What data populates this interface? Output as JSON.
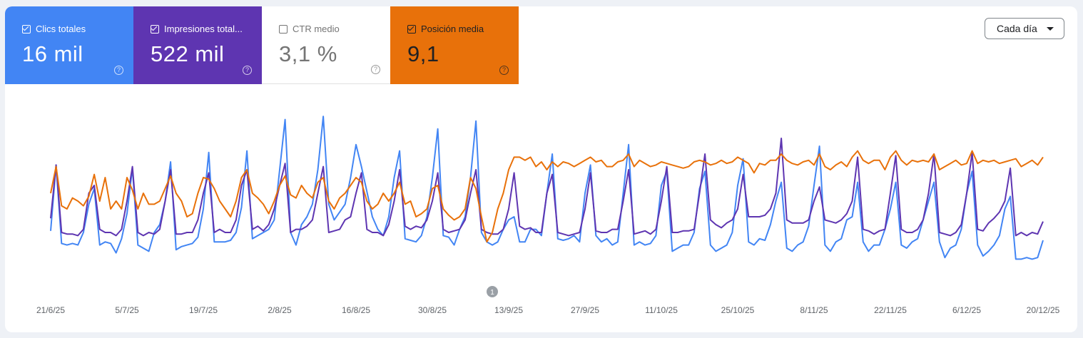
{
  "metrics": [
    {
      "label": "Clics totales",
      "value": "16 mil",
      "checked": true,
      "color": "#4285f4"
    },
    {
      "label": "Impresiones total...",
      "value": "522 mil",
      "checked": true,
      "color": "#5e35b1"
    },
    {
      "label": "CTR medio",
      "value": "3,1 %",
      "checked": false,
      "color": "#ffffff"
    },
    {
      "label": "Posición media",
      "value": "9,1",
      "checked": true,
      "color": "#e8710a"
    }
  ],
  "help_icon": "?",
  "granularity": {
    "selected": "Cada día"
  },
  "annotation": {
    "label": "1"
  },
  "chart_data": {
    "type": "line",
    "x_start": "21/6/25",
    "x_end": "20/12/25",
    "x_tick_labels": [
      "21/6/25",
      "5/7/25",
      "19/7/25",
      "2/8/25",
      "16/8/25",
      "30/8/25",
      "13/9/25",
      "27/9/25",
      "11/10/25",
      "25/10/25",
      "8/11/25",
      "22/11/25",
      "6/12/25",
      "20/12/25"
    ],
    "y_axis": "hidden, relative scale 0-100 per series",
    "grid": false,
    "series": [
      {
        "key": "clicks",
        "color": "#4285f4",
        "values": [
          21,
          63,
          13,
          12,
          13,
          12,
          20,
          38,
          48,
          12,
          14,
          13,
          7,
          16,
          32,
          61,
          12,
          10,
          8,
          20,
          25,
          40,
          65,
          9,
          11,
          12,
          13,
          17,
          35,
          71,
          14,
          14,
          14,
          15,
          20,
          36,
          72,
          16,
          18,
          20,
          22,
          28,
          60,
          92,
          20,
          12,
          25,
          30,
          38,
          60,
          94,
          38,
          28,
          33,
          38,
          55,
          76,
          62,
          46,
          30,
          22,
          18,
          30,
          55,
          72,
          16,
          15,
          14,
          18,
          30,
          55,
          86,
          18,
          17,
          12,
          22,
          30,
          55,
          91,
          20,
          14,
          12,
          14,
          22,
          28,
          30,
          14,
          14,
          22,
          22,
          18,
          45,
          70,
          16,
          15,
          16,
          18,
          14,
          45,
          63,
          18,
          14,
          16,
          12,
          14,
          45,
          76,
          12,
          14,
          12,
          13,
          18,
          50,
          59,
          8,
          10,
          12,
          12,
          20,
          48,
          59,
          12,
          8,
          10,
          12,
          20,
          50,
          67,
          14,
          12,
          16,
          15,
          25,
          40,
          52,
          10,
          8,
          12,
          14,
          24,
          50,
          75,
          12,
          8,
          14,
          16,
          28,
          30,
          52,
          14,
          8,
          12,
          12,
          22,
          35,
          52,
          12,
          10,
          14,
          16,
          28,
          40,
          52,
          14,
          4,
          10,
          12,
          22,
          45,
          59,
          12,
          5,
          8,
          12,
          18,
          35,
          43,
          3,
          3,
          4,
          3,
          4,
          15
        ]
      },
      {
        "key": "impressions",
        "color": "#5e35b1",
        "values": [
          29,
          63,
          20,
          19,
          19,
          18,
          22,
          45,
          50,
          22,
          20,
          20,
          18,
          22,
          40,
          62,
          20,
          18,
          20,
          19,
          22,
          40,
          60,
          19,
          19,
          20,
          20,
          28,
          45,
          58,
          20,
          22,
          20,
          20,
          28,
          50,
          60,
          22,
          24,
          21,
          25,
          35,
          50,
          64,
          20,
          22,
          22,
          24,
          28,
          45,
          62,
          20,
          21,
          22,
          28,
          30,
          45,
          58,
          22,
          20,
          20,
          18,
          25,
          40,
          60,
          24,
          22,
          24,
          23,
          28,
          40,
          58,
          22,
          20,
          21,
          22,
          28,
          45,
          60,
          22,
          20,
          19,
          19,
          22,
          35,
          58,
          24,
          22,
          23,
          20,
          20,
          45,
          57,
          20,
          19,
          18,
          19,
          20,
          35,
          58,
          21,
          20,
          20,
          22,
          22,
          40,
          60,
          19,
          20,
          21,
          19,
          22,
          40,
          62,
          20,
          20,
          21,
          21,
          22,
          45,
          70,
          28,
          25,
          23,
          26,
          28,
          35,
          57,
          30,
          30,
          30,
          31,
          35,
          45,
          80,
          28,
          26,
          26,
          26,
          28,
          40,
          49,
          28,
          27,
          26,
          28,
          32,
          40,
          68,
          22,
          21,
          19,
          21,
          22,
          45,
          69,
          22,
          20,
          20,
          22,
          28,
          45,
          70,
          20,
          19,
          18,
          20,
          25,
          45,
          71,
          22,
          21,
          26,
          29,
          33,
          40,
          61,
          18,
          20,
          18,
          20,
          19,
          27
        ]
      },
      {
        "key": "position",
        "color": "#e8710a",
        "values": [
          45,
          62,
          37,
          35,
          42,
          40,
          37,
          43,
          57,
          40,
          55,
          35,
          40,
          35,
          55,
          47,
          35,
          45,
          38,
          38,
          40,
          48,
          56,
          45,
          40,
          30,
          32,
          45,
          55,
          54,
          48,
          40,
          35,
          30,
          40,
          55,
          60,
          45,
          42,
          38,
          32,
          40,
          50,
          56,
          44,
          42,
          50,
          45,
          42,
          52,
          55,
          40,
          35,
          42,
          45,
          50,
          55,
          52,
          40,
          35,
          38,
          45,
          40,
          45,
          52,
          38,
          40,
          30,
          32,
          35,
          48,
          50,
          35,
          31,
          28,
          30,
          35,
          55,
          48,
          30,
          14,
          20,
          35,
          45,
          60,
          68,
          68,
          66,
          68,
          62,
          65,
          60,
          65,
          62,
          65,
          64,
          62,
          64,
          66,
          68,
          65,
          66,
          62,
          62,
          65,
          66,
          70,
          62,
          66,
          64,
          62,
          63,
          65,
          64,
          63,
          62,
          61,
          62,
          65,
          66,
          65,
          63,
          64,
          66,
          64,
          65,
          68,
          66,
          64,
          58,
          64,
          63,
          66,
          66,
          70,
          66,
          64,
          63,
          65,
          66,
          63,
          70,
          62,
          60,
          63,
          65,
          62,
          68,
          72,
          66,
          64,
          66,
          66,
          60,
          68,
          72,
          66,
          63,
          66,
          65,
          66,
          65,
          70,
          60,
          62,
          64,
          66,
          63,
          64,
          72,
          64,
          66,
          65,
          66,
          64,
          65,
          66,
          67,
          62,
          64,
          66,
          63,
          68
        ]
      }
    ]
  }
}
